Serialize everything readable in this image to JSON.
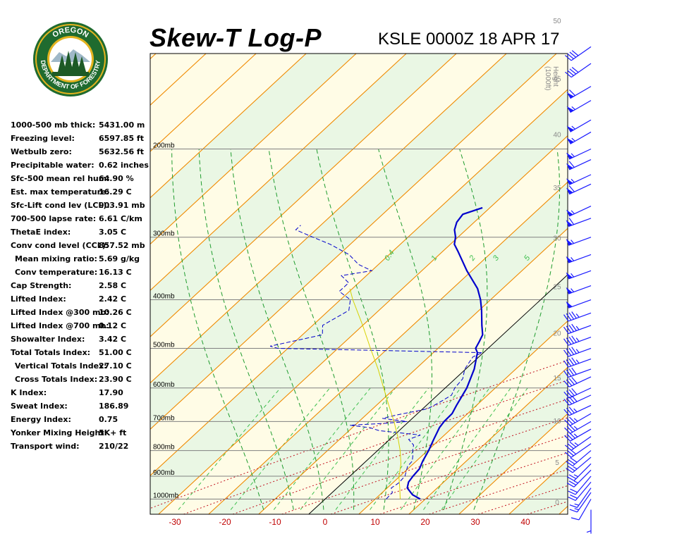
{
  "header": {
    "title": "Skew-T Log-P",
    "station": "KSLE 0000Z 18 APR 17"
  },
  "logo": {
    "top_text": "OREGON",
    "bottom_text": "DEPARTMENT OF FORESTRY",
    "colors": {
      "ring": "#1f6b2f",
      "gold": "#e3b31f",
      "sky": "#ffffff",
      "trees": "#1d5a26"
    }
  },
  "stats": [
    {
      "label": "1000-500 mb thick:",
      "value": "5431.00 m"
    },
    {
      "label": "Freezing level:",
      "value": "6597.85 ft"
    },
    {
      "label": "Wetbulb zero:",
      "value": "5632.56 ft"
    },
    {
      "label": "Precipitable water:",
      "value": "0.62 inches"
    },
    {
      "label": "Sfc-500 mean rel hum:",
      "value": "64.90 %"
    },
    {
      "label": "Est. max temperature:",
      "value": "16.29 C"
    },
    {
      "label": "Sfc-Lift cond lev (LCL):",
      "value": "903.91 mb"
    },
    {
      "label": "700-500 lapse rate:",
      "value": "6.61 C/km"
    },
    {
      "label": "ThetaE index:",
      "value": "3.05 C"
    },
    {
      "label": "Conv cond level (CCL):",
      "value": "857.52 mb"
    },
    {
      "label": "Mean mixing ratio:",
      "value": "5.69 g/kg",
      "indent": true
    },
    {
      "label": "Conv temperature:",
      "value": "16.13 C",
      "indent": true
    },
    {
      "label": "Cap Strength:",
      "value": "2.58 C"
    },
    {
      "label": "Lifted Index:",
      "value": "2.42 C"
    },
    {
      "label": "Lifted Index @300 mb:",
      "value": "10.26 C"
    },
    {
      "label": "Lifted Index @700 mb:",
      "value": "0.12 C"
    },
    {
      "label": "Showalter Index:",
      "value": "3.42 C"
    },
    {
      "label": "Total Totals Index:",
      "value": "51.00 C"
    },
    {
      "label": "Vertical Totals Index:",
      "value": "27.10 C",
      "indent": true
    },
    {
      "label": "Cross Totals Index:",
      "value": "23.90 C",
      "indent": true
    },
    {
      "label": "K Index:",
      "value": "17.90"
    },
    {
      "label": "Sweat Index:",
      "value": "186.89"
    },
    {
      "label": "Energy Index:",
      "value": "0.75"
    },
    {
      "label": "Yonker Mixing Height:",
      "value": "5K+ ft"
    },
    {
      "label": "Transport wind:",
      "value": "210/22"
    }
  ],
  "chart_data": {
    "type": "line",
    "title": "Skew-T Log-P",
    "subtitle": "KSLE 0000Z 18 APR 17",
    "xlabel": "",
    "ylabel": "",
    "xlim": [
      -35,
      48
    ],
    "x_ticks": [
      -30,
      -20,
      -10,
      0,
      10,
      20,
      30,
      40
    ],
    "pressure_lines": [
      {
        "p": 200,
        "label": "200mb"
      },
      {
        "p": 300,
        "label": "300mb"
      },
      {
        "p": 400,
        "label": "400mb"
      },
      {
        "p": 500,
        "label": "500mb"
      },
      {
        "p": 600,
        "label": "600mb"
      },
      {
        "p": 700,
        "label": "700mb"
      },
      {
        "p": 800,
        "label": "800mb"
      },
      {
        "p": 900,
        "label": "900mb"
      },
      {
        "p": 1000,
        "label": "1000mb"
      }
    ],
    "height_axis": {
      "title": "Height (1000ft)",
      "ticks": [
        0,
        5,
        10,
        15,
        20,
        25,
        30,
        35,
        40,
        45,
        50
      ]
    },
    "mixing_ratio_labels": [
      "0.4",
      "1",
      "2",
      "3",
      "5"
    ],
    "series": [
      {
        "key": "temperature",
        "color": "#0000cc",
        "points": [
          [
            1000,
            19.0
          ],
          [
            980,
            16.5
          ],
          [
            950,
            14.0
          ],
          [
            925,
            13.0
          ],
          [
            900,
            12.6
          ],
          [
            870,
            12.3
          ],
          [
            840,
            11.3
          ],
          [
            800,
            10.2
          ],
          [
            760,
            8.8
          ],
          [
            720,
            7.4
          ],
          [
            700,
            7.0
          ],
          [
            675,
            6.9
          ],
          [
            650,
            6.0
          ],
          [
            620,
            5.0
          ],
          [
            600,
            4.3
          ],
          [
            550,
            1.7
          ],
          [
            510,
            -1.2
          ],
          [
            500,
            -2.5
          ],
          [
            485,
            -3.2
          ],
          [
            470,
            -4.0
          ],
          [
            450,
            -6.2
          ],
          [
            420,
            -9.5
          ],
          [
            400,
            -12.0
          ],
          [
            380,
            -15.0
          ],
          [
            350,
            -21.0
          ],
          [
            320,
            -27.0
          ],
          [
            310,
            -29.2
          ],
          [
            300,
            -30.5
          ],
          [
            290,
            -32.3
          ],
          [
            280,
            -33.5
          ],
          [
            270,
            -34.0
          ],
          [
            262,
            -31.5
          ]
        ]
      },
      {
        "key": "dewpoint",
        "color": "#0000cc",
        "points": [
          [
            1000,
            12.2
          ],
          [
            970,
            12.0
          ],
          [
            950,
            10.8
          ],
          [
            930,
            11.2
          ],
          [
            900,
            11.0
          ],
          [
            880,
            10.2
          ],
          [
            860,
            9.4
          ],
          [
            840,
            9.2
          ],
          [
            820,
            8.2
          ],
          [
            800,
            7.0
          ],
          [
            780,
            6.0
          ],
          [
            760,
            3.8
          ],
          [
            745,
            5.2
          ],
          [
            730,
            -4.0
          ],
          [
            720,
            -6.5
          ],
          [
            712,
            -11.0
          ],
          [
            706,
            -4.5
          ],
          [
            700,
            -0.4
          ],
          [
            690,
            -6.0
          ],
          [
            680,
            -4.0
          ],
          [
            660,
            1.0
          ],
          [
            640,
            2.0
          ],
          [
            620,
            2.8
          ],
          [
            600,
            1.9
          ],
          [
            575,
            1.5
          ],
          [
            550,
            -0.2
          ],
          [
            520,
            -1.2
          ],
          [
            510,
            -0.2
          ],
          [
            500,
            -42.0
          ],
          [
            495,
            -44.0
          ],
          [
            470,
            -36.0
          ],
          [
            450,
            -38.0
          ],
          [
            420,
            -36.0
          ],
          [
            400,
            -38.0
          ],
          [
            385,
            -42.0
          ],
          [
            370,
            -42.0
          ],
          [
            358,
            -45.0
          ],
          [
            350,
            -40.0
          ],
          [
            340,
            -44.0
          ],
          [
            325,
            -48.0
          ],
          [
            310,
            -54.0
          ],
          [
            298,
            -60.0
          ],
          [
            290,
            -64.0
          ],
          [
            284,
            -64.0
          ]
        ]
      },
      {
        "key": "parcel",
        "color": "#d6d200",
        "points": [
          [
            1000,
            15.0
          ],
          [
            950,
            12.5
          ],
          [
            904,
            10.0
          ],
          [
            850,
            7.5
          ],
          [
            800,
            4.5
          ],
          [
            750,
            1.0
          ],
          [
            700,
            -3.0
          ],
          [
            650,
            -7.5
          ],
          [
            600,
            -12.3
          ],
          [
            550,
            -17.5
          ],
          [
            500,
            -23.5
          ],
          [
            450,
            -30.0
          ],
          [
            400,
            -37.5
          ],
          [
            380,
            -40.5
          ]
        ]
      }
    ],
    "wind_barbs": [
      {
        "p": 1050,
        "dir": 180,
        "spd": 5
      },
      {
        "p": 1000,
        "dir": 210,
        "spd": 10
      },
      {
        "p": 970,
        "dir": 215,
        "spd": 15
      },
      {
        "p": 950,
        "dir": 215,
        "spd": 15
      },
      {
        "p": 925,
        "dir": 220,
        "spd": 20
      },
      {
        "p": 900,
        "dir": 220,
        "spd": 20
      },
      {
        "p": 875,
        "dir": 225,
        "spd": 25
      },
      {
        "p": 850,
        "dir": 225,
        "spd": 25
      },
      {
        "p": 825,
        "dir": 230,
        "spd": 25
      },
      {
        "p": 800,
        "dir": 230,
        "spd": 30
      },
      {
        "p": 775,
        "dir": 235,
        "spd": 30
      },
      {
        "p": 750,
        "dir": 235,
        "spd": 35
      },
      {
        "p": 725,
        "dir": 240,
        "spd": 35
      },
      {
        "p": 700,
        "dir": 240,
        "spd": 35
      },
      {
        "p": 675,
        "dir": 240,
        "spd": 35
      },
      {
        "p": 650,
        "dir": 245,
        "spd": 35
      },
      {
        "p": 620,
        "dir": 245,
        "spd": 40
      },
      {
        "p": 600,
        "dir": 245,
        "spd": 40
      },
      {
        "p": 570,
        "dir": 245,
        "spd": 40
      },
      {
        "p": 550,
        "dir": 250,
        "spd": 40
      },
      {
        "p": 525,
        "dir": 250,
        "spd": 45
      },
      {
        "p": 500,
        "dir": 250,
        "spd": 45
      },
      {
        "p": 475,
        "dir": 250,
        "spd": 45
      },
      {
        "p": 450,
        "dir": 250,
        "spd": 45
      },
      {
        "p": 425,
        "dir": 250,
        "spd": 45
      },
      {
        "p": 400,
        "dir": 250,
        "spd": 50
      },
      {
        "p": 375,
        "dir": 250,
        "spd": 55
      },
      {
        "p": 350,
        "dir": 250,
        "spd": 55
      },
      {
        "p": 325,
        "dir": 250,
        "spd": 55
      },
      {
        "p": 300,
        "dir": 250,
        "spd": 55
      },
      {
        "p": 275,
        "dir": 250,
        "spd": 60
      },
      {
        "p": 260,
        "dir": 245,
        "spd": 55
      },
      {
        "p": 235,
        "dir": 245,
        "spd": 60
      },
      {
        "p": 225,
        "dir": 245,
        "spd": 55
      },
      {
        "p": 210,
        "dir": 245,
        "spd": 60
      },
      {
        "p": 200,
        "dir": 245,
        "spd": 55
      },
      {
        "p": 185,
        "dir": 240,
        "spd": 55
      },
      {
        "p": 175,
        "dir": 240,
        "spd": 55
      },
      {
        "p": 160,
        "dir": 240,
        "spd": 55
      },
      {
        "p": 150,
        "dir": 240,
        "spd": 60
      },
      {
        "p": 135,
        "dir": 235,
        "spd": 40
      },
      {
        "p": 125,
        "dir": 235,
        "spd": 40
      }
    ],
    "colors": {
      "plot_bg": "#fffce6",
      "band": "#eaf7e4",
      "isobar": "#808080",
      "isotherm": "#f08a00",
      "dry_adiabat": "#c1121f",
      "moist_adiabat": "#1f9c2e",
      "mixing_ratio": "#3dbf4d",
      "zero_isotherm": "#000000",
      "temp_tick": "#c00000",
      "wind_barb": "#1a1aff"
    }
  }
}
